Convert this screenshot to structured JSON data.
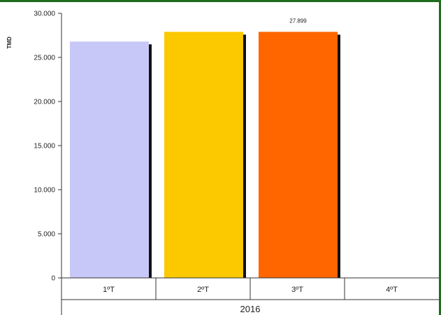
{
  "chart_data": {
    "type": "bar",
    "ylabel": "TMD",
    "group_label": "2016",
    "categories": [
      "1ºT",
      "2ºT",
      "3ºT",
      "4ºT"
    ],
    "values": [
      26800,
      27900,
      27899,
      null
    ],
    "data_labels": [
      null,
      null,
      "27.899",
      null
    ],
    "colors": [
      "#c8c8f8",
      "#fcc800",
      "#ff6600",
      null
    ],
    "ylim": [
      0,
      30000
    ],
    "yticks": [
      0,
      5000,
      10000,
      15000,
      20000,
      25000,
      30000
    ],
    "ytick_labels": [
      "0",
      "5.000",
      "10.000",
      "15.000",
      "20.000",
      "25.000",
      "30.000"
    ],
    "grid": false,
    "legend": "none"
  },
  "colors": {
    "frame": "#1f6b1f",
    "axis": "#333333",
    "bar_shadow": "#111111"
  }
}
